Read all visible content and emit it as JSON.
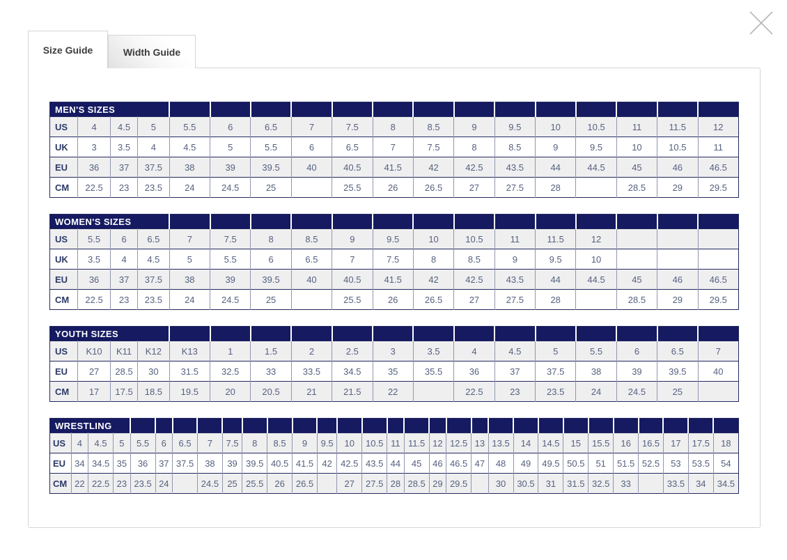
{
  "tabs": [
    {
      "label": "Size Guide",
      "active": true
    },
    {
      "label": "Width Guide",
      "active": false
    }
  ],
  "close_icon": "x",
  "colors": {
    "header_bg": "#151a61",
    "row_alt_bg": "#efeff0",
    "value_text": "#57617f",
    "label_text": "#2c3a69",
    "grid_dark": "#23285f",
    "grid_light": "#9096ad",
    "panel_border": "#d5d5d5",
    "close_icon": "#b7b7b7"
  },
  "tables": [
    {
      "title": "MEN'S SIZES",
      "rows": [
        {
          "label": "US",
          "values": [
            "4",
            "4.5",
            "5",
            "5.5",
            "6",
            "6.5",
            "7",
            "7.5",
            "8",
            "8.5",
            "9",
            "9.5",
            "10",
            "10.5",
            "11",
            "11.5",
            "12"
          ]
        },
        {
          "label": "UK",
          "values": [
            "3",
            "3.5",
            "4",
            "4.5",
            "5",
            "5.5",
            "6",
            "6.5",
            "7",
            "7.5",
            "8",
            "8.5",
            "9",
            "9.5",
            "10",
            "10.5",
            "11"
          ]
        },
        {
          "label": "EU",
          "values": [
            "36",
            "37",
            "37.5",
            "38",
            "39",
            "39.5",
            "40",
            "40.5",
            "41.5",
            "42",
            "42.5",
            "43.5",
            "44",
            "44.5",
            "45",
            "46",
            "46.5"
          ]
        },
        {
          "label": "CM",
          "values": [
            "22.5",
            "23",
            "23.5",
            "24",
            "24.5",
            "25",
            "",
            "25.5",
            "26",
            "26.5",
            "27",
            "27.5",
            "28",
            "",
            "28.5",
            "29",
            "29.5"
          ]
        }
      ]
    },
    {
      "title": "WOMEN'S SIZES",
      "rows": [
        {
          "label": "US",
          "values": [
            "5.5",
            "6",
            "6.5",
            "7",
            "7.5",
            "8",
            "8.5",
            "9",
            "9.5",
            "10",
            "10.5",
            "11",
            "11.5",
            "12",
            "",
            "",
            ""
          ]
        },
        {
          "label": "UK",
          "values": [
            "3.5",
            "4",
            "4.5",
            "5",
            "5.5",
            "6",
            "6.5",
            "7",
            "7.5",
            "8",
            "8.5",
            "9",
            "9.5",
            "10",
            "",
            "",
            ""
          ]
        },
        {
          "label": "EU",
          "values": [
            "36",
            "37",
            "37.5",
            "38",
            "39",
            "39.5",
            "40",
            "40.5",
            "41.5",
            "42",
            "42.5",
            "43.5",
            "44",
            "44.5",
            "45",
            "46",
            "46.5"
          ]
        },
        {
          "label": "CM",
          "values": [
            "22.5",
            "23",
            "23.5",
            "24",
            "24.5",
            "25",
            "",
            "25.5",
            "26",
            "26.5",
            "27",
            "27.5",
            "28",
            "",
            "28.5",
            "29",
            "29.5"
          ]
        }
      ]
    },
    {
      "title": "YOUTH SIZES",
      "rows": [
        {
          "label": "US",
          "values": [
            "K10",
            "K11",
            "K12",
            "K13",
            "1",
            "1.5",
            "2",
            "2.5",
            "3",
            "3.5",
            "4",
            "4.5",
            "5",
            "5.5",
            "6",
            "6.5",
            "7"
          ]
        },
        {
          "label": "EU",
          "values": [
            "27",
            "28.5",
            "30",
            "31.5",
            "32.5",
            "33",
            "33.5",
            "34.5",
            "35",
            "35.5",
            "36",
            "37",
            "37.5",
            "38",
            "39",
            "39.5",
            "40"
          ]
        },
        {
          "label": "CM",
          "values": [
            "17",
            "17.5",
            "18.5",
            "19.5",
            "20",
            "20.5",
            "21",
            "21.5",
            "22",
            "",
            "22.5",
            "23",
            "23.5",
            "24",
            "24.5",
            "25",
            ""
          ]
        }
      ]
    },
    {
      "title": "WRESTLING",
      "rows": [
        {
          "label": "US",
          "values": [
            "4",
            "4.5",
            "5",
            "5.5",
            "6",
            "6.5",
            "7",
            "7.5",
            "8",
            "8.5",
            "9",
            "9.5",
            "10",
            "10.5",
            "11",
            "11.5",
            "12",
            "12.5",
            "13",
            "13.5",
            "14",
            "14.5",
            "15",
            "15.5",
            "16",
            "16.5",
            "17",
            "17.5",
            "18"
          ]
        },
        {
          "label": "EU",
          "values": [
            "34",
            "34.5",
            "35",
            "36",
            "37",
            "37.5",
            "38",
            "39",
            "39.5",
            "40.5",
            "41.5",
            "42",
            "42.5",
            "43.5",
            "44",
            "45",
            "46",
            "46.5",
            "47",
            "48",
            "49",
            "49.5",
            "50.5",
            "51",
            "51.5",
            "52.5",
            "53",
            "53.5",
            "54"
          ]
        },
        {
          "label": "CM",
          "values": [
            "22",
            "22.5",
            "23",
            "23.5",
            "24",
            "",
            "24.5",
            "25",
            "25.5",
            "26",
            "26.5",
            "",
            "27",
            "27.5",
            "28",
            "28.5",
            "29",
            "29.5",
            "",
            "30",
            "30.5",
            "31",
            "31.5",
            "32.5",
            "33",
            "",
            "33.5",
            "34",
            "34.5"
          ]
        }
      ]
    }
  ]
}
